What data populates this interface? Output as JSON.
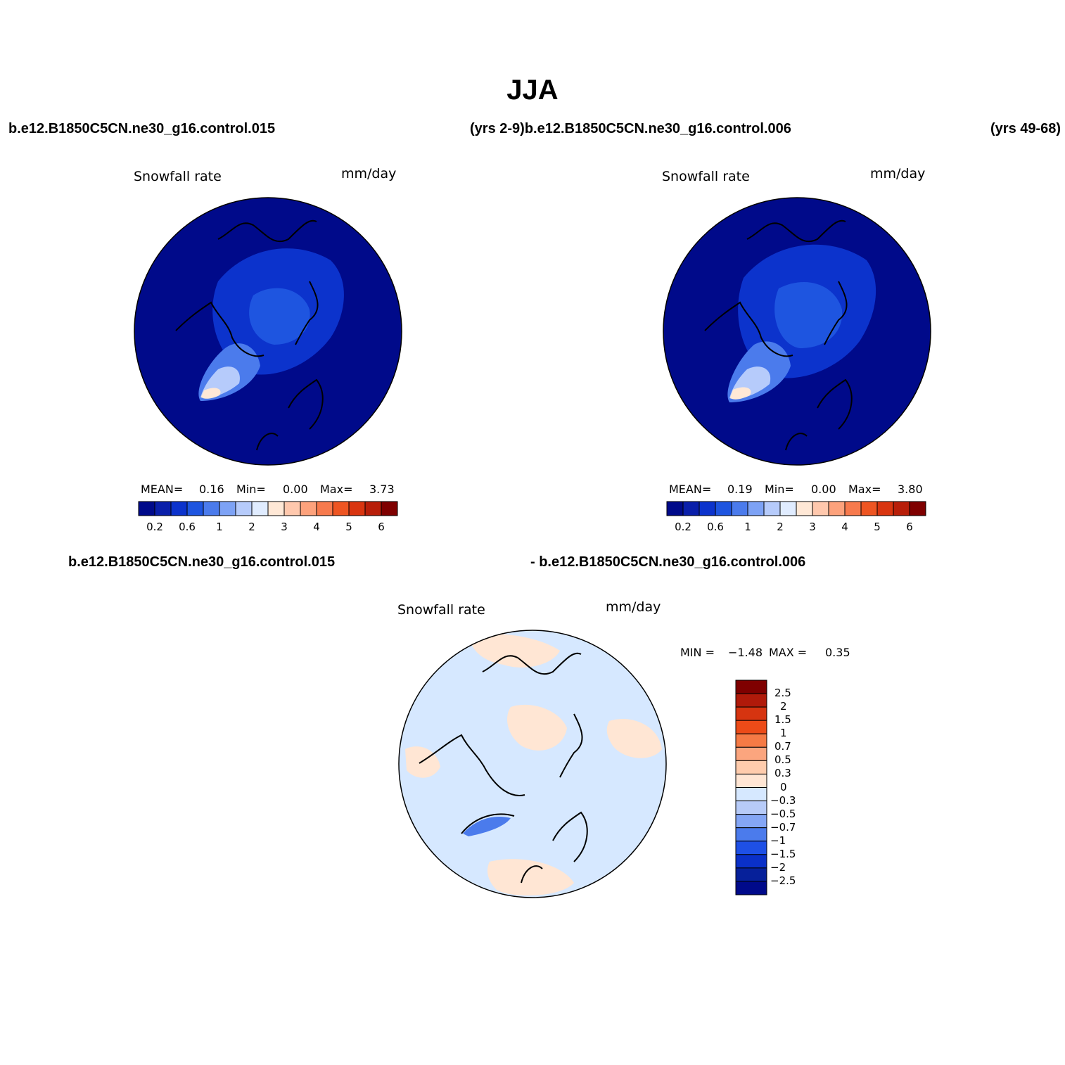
{
  "title": "JJA",
  "header_labels": {
    "left_case": "b.e12.B1850C5CN.ne30_g16.control.015",
    "middle": "(yrs 2-9)b.e12.B1850C5CN.ne30_g16.control.006",
    "right": "(yrs 49-68)"
  },
  "diff_labels": {
    "left_case": "b.e12.B1850C5CN.ne30_g16.control.015",
    "right_case": "- b.e12.B1850C5CN.ne30_g16.control.006"
  },
  "panels": [
    {
      "variable": "Snowfall rate",
      "units": "mm/day",
      "mean_label": "MEAN=",
      "mean": "0.16",
      "min_label": "Min=",
      "min": "0.00",
      "max_label": "Max=",
      "max": "3.73"
    },
    {
      "variable": "Snowfall rate",
      "units": "mm/day",
      "mean_label": "MEAN=",
      "mean": "0.19",
      "min_label": "Min=",
      "min": "0.00",
      "max_label": "Max=",
      "max": "3.80"
    }
  ],
  "diff_panel": {
    "variable": "Snowfall rate",
    "units": "mm/day",
    "min_label": "MIN =",
    "min": "−1.48",
    "max_label": "MAX =",
    "max": "0.35"
  },
  "colorbar": {
    "colors": [
      "#000a8a",
      "#0a1faa",
      "#0c33cc",
      "#1e55e0",
      "#4b7bec",
      "#7da2f5",
      "#b6cbfb",
      "#e0ecff",
      "#ffe8d6",
      "#ffc8ad",
      "#fda27c",
      "#f77a4d",
      "#ee5522",
      "#d93510",
      "#b81e09",
      "#7f0000"
    ],
    "tick_labels": [
      "0.2",
      "0.6",
      "1",
      "2",
      "3",
      "4",
      "5",
      "6"
    ]
  },
  "diff_colorbar": {
    "colors": [
      "#7f0000",
      "#b01a0a",
      "#d63410",
      "#ec4b18",
      "#f57a45",
      "#fba57e",
      "#ffccad",
      "#ffe6d4",
      "#d6e8ff",
      "#b7cbf8",
      "#84a6f5",
      "#4b7bec",
      "#1e50e6",
      "#0a30c8",
      "#06209a",
      "#000a8a"
    ],
    "labels": [
      "2.5",
      "2",
      "1.5",
      "1",
      "0.7",
      "0.5",
      "0.3",
      "0",
      "−0.3",
      "−0.5",
      "−0.7",
      "−1",
      "−1.5",
      "−2",
      "−2.5"
    ]
  },
  "colors": {
    "ocean_deep": "#000a8a",
    "diff_background": "#d6e8ff",
    "diff_positive": "#ffe6d4"
  }
}
